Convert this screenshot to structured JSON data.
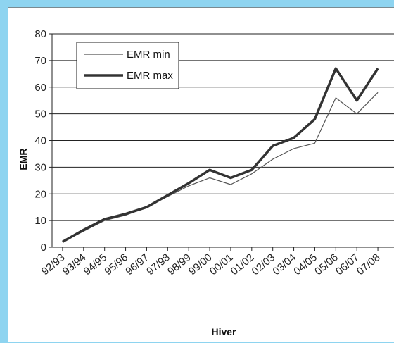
{
  "chart_data": {
    "type": "line",
    "title": "",
    "xlabel": "Hiver",
    "ylabel": "EMR",
    "ylim": [
      0,
      80
    ],
    "yticks": [
      "0",
      "10",
      "20",
      "30",
      "40",
      "50",
      "60",
      "70",
      "80"
    ],
    "grid": "horizontal",
    "legend_position": "top-left",
    "categories": [
      "92/93",
      "93/94",
      "94/95",
      "95/96",
      "96/97",
      "97/98",
      "98/99",
      "99/00",
      "00/01",
      "01/02",
      "02/03",
      "03/04",
      "04/05",
      "05/06",
      "06/07",
      "07/08"
    ],
    "series": [
      {
        "name": "EMR min",
        "line_width": "thin",
        "color": "#555555",
        "values": [
          2,
          6,
          10,
          12,
          15,
          19,
          23,
          26,
          23.5,
          27.5,
          33,
          37,
          39,
          56,
          50,
          58
        ]
      },
      {
        "name": "EMR max",
        "line_width": "thick",
        "color": "#333333",
        "values": [
          2,
          6.5,
          10.5,
          12.5,
          15,
          19.5,
          24,
          29,
          26,
          29,
          38,
          41,
          48,
          67,
          55,
          67
        ]
      }
    ]
  },
  "colors": {
    "page_background": "#8ed4f0",
    "plot_background": "#ffffff",
    "gridline": "#222222"
  }
}
